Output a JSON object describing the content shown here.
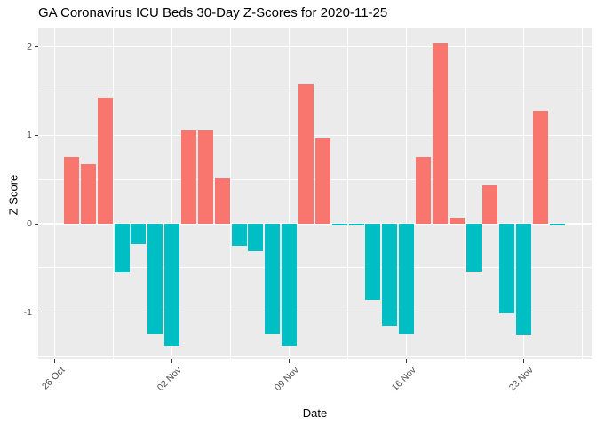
{
  "figure": {
    "title": "GA Coronavirus ICU Beds 30-Day Z-Scores for 2020-11-25",
    "x_axis_title": "Date",
    "y_axis_title": "Z Score"
  },
  "chart_data": {
    "type": "bar",
    "title": "GA Coronavirus ICU Beds 30-Day Z-Scores for 2020-11-25",
    "xlabel": "Date",
    "ylabel": "Z Score",
    "x": [
      "2020-10-27",
      "2020-10-28",
      "2020-10-29",
      "2020-10-30",
      "2020-10-31",
      "2020-11-01",
      "2020-11-02",
      "2020-11-03",
      "2020-11-04",
      "2020-11-05",
      "2020-11-06",
      "2020-11-07",
      "2020-11-08",
      "2020-11-09",
      "2020-11-10",
      "2020-11-11",
      "2020-11-12",
      "2020-11-13",
      "2020-11-14",
      "2020-11-15",
      "2020-11-16",
      "2020-11-17",
      "2020-11-18",
      "2020-11-19",
      "2020-11-20",
      "2020-11-21",
      "2020-11-22",
      "2020-11-23",
      "2020-11-24",
      "2020-11-25"
    ],
    "values": [
      0.75,
      0.67,
      1.43,
      -0.55,
      -0.23,
      -1.24,
      -1.39,
      1.05,
      1.05,
      0.51,
      -0.25,
      -0.31,
      -1.24,
      -1.39,
      1.58,
      0.96,
      -0.02,
      -0.02,
      -0.86,
      -1.15,
      -1.24,
      0.75,
      2.04,
      0.06,
      -0.54,
      0.43,
      -1.01,
      -1.25,
      1.28,
      -0.02
    ],
    "positive_color": "#F8766D",
    "negative_color": "#00BFC4",
    "x_ticks": [
      {
        "label": "26 Oct",
        "day": 0
      },
      {
        "label": "02 Nov",
        "day": 7
      },
      {
        "label": "09 Nov",
        "day": 14
      },
      {
        "label": "16 Nov",
        "day": 21
      },
      {
        "label": "23 Nov",
        "day": 28
      }
    ],
    "x_minor_days": [
      3.5,
      10.5,
      17.5,
      24.5,
      31.5
    ],
    "y_ticks": [
      2,
      1,
      0,
      -1
    ],
    "y_minor": [
      1.5,
      0.5,
      -0.5,
      -1.5
    ],
    "ylim": [
      -1.54,
      2.21
    ],
    "grid": true,
    "legend_position": "none",
    "panel_bg": "#EBEBEB",
    "grid_color": "#FFFFFF",
    "axis_text_color": "#4D4D4D"
  }
}
